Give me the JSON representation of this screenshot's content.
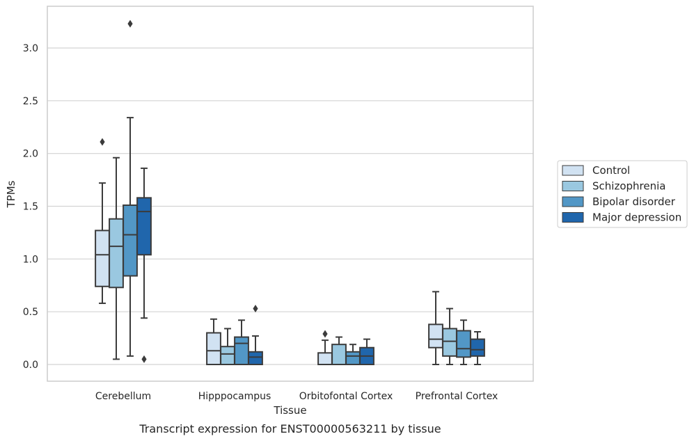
{
  "chart_data": {
    "type": "boxplot",
    "title": "Transcript expression for ENST00000563211 by tissue",
    "xlabel": "Tissue",
    "ylabel": "TPMs",
    "ylim": [
      -0.16,
      3.4
    ],
    "yticks": [
      0.0,
      0.5,
      1.0,
      1.5,
      2.0,
      2.5,
      3.0
    ],
    "ytick_labels": [
      "0.0",
      "0.5",
      "1.0",
      "1.5",
      "2.0",
      "2.5",
      "3.0"
    ],
    "grid": "horizontal",
    "legend_position": "right",
    "categories": [
      "Cerebellum",
      "Hipppocampus",
      "Orbitofontal Cortex",
      "Prefrontal Cortex"
    ],
    "series": [
      {
        "name": "Control",
        "color": "#d1e2f2",
        "boxes": [
          {
            "whisker_low": 0.58,
            "q1": 0.74,
            "median": 1.04,
            "q3": 1.27,
            "whisker_high": 1.72,
            "outliers": [
              2.11
            ]
          },
          {
            "whisker_low": 0.0,
            "q1": 0.0,
            "median": 0.13,
            "q3": 0.3,
            "whisker_high": 0.43,
            "outliers": []
          },
          {
            "whisker_low": 0.0,
            "q1": 0.0,
            "median": 0.0,
            "q3": 0.11,
            "whisker_high": 0.23,
            "outliers": [
              0.29
            ]
          },
          {
            "whisker_low": 0.0,
            "q1": 0.16,
            "median": 0.24,
            "q3": 0.38,
            "whisker_high": 0.69,
            "outliers": []
          }
        ]
      },
      {
        "name": "Schizophrenia",
        "color": "#9ac8e0",
        "boxes": [
          {
            "whisker_low": 0.05,
            "q1": 0.73,
            "median": 1.12,
            "q3": 1.38,
            "whisker_high": 1.96,
            "outliers": []
          },
          {
            "whisker_low": 0.0,
            "q1": 0.0,
            "median": 0.1,
            "q3": 0.17,
            "whisker_high": 0.34,
            "outliers": []
          },
          {
            "whisker_low": 0.0,
            "q1": 0.0,
            "median": 0.0,
            "q3": 0.19,
            "whisker_high": 0.26,
            "outliers": []
          },
          {
            "whisker_low": 0.0,
            "q1": 0.08,
            "median": 0.22,
            "q3": 0.34,
            "whisker_high": 0.53,
            "outliers": []
          }
        ]
      },
      {
        "name": "Bipolar disorder",
        "color": "#5297c6",
        "boxes": [
          {
            "whisker_low": 0.08,
            "q1": 0.84,
            "median": 1.23,
            "q3": 1.51,
            "whisker_high": 2.34,
            "outliers": [
              3.23
            ]
          },
          {
            "whisker_low": 0.0,
            "q1": 0.0,
            "median": 0.2,
            "q3": 0.26,
            "whisker_high": 0.42,
            "outliers": []
          },
          {
            "whisker_low": 0.0,
            "q1": 0.0,
            "median": 0.08,
            "q3": 0.12,
            "whisker_high": 0.19,
            "outliers": []
          },
          {
            "whisker_low": 0.0,
            "q1": 0.07,
            "median": 0.15,
            "q3": 0.32,
            "whisker_high": 0.42,
            "outliers": []
          }
        ]
      },
      {
        "name": "Major depression",
        "color": "#2066ac",
        "boxes": [
          {
            "whisker_low": 0.44,
            "q1": 1.04,
            "median": 1.45,
            "q3": 1.58,
            "whisker_high": 1.86,
            "outliers": [
              0.05
            ]
          },
          {
            "whisker_low": 0.0,
            "q1": 0.0,
            "median": 0.07,
            "q3": 0.12,
            "whisker_high": 0.27,
            "outliers": [
              0.53
            ]
          },
          {
            "whisker_low": 0.0,
            "q1": 0.0,
            "median": 0.08,
            "q3": 0.16,
            "whisker_high": 0.24,
            "outliers": []
          },
          {
            "whisker_low": 0.0,
            "q1": 0.08,
            "median": 0.14,
            "q3": 0.24,
            "whisker_high": 0.31,
            "outliers": []
          }
        ]
      }
    ]
  }
}
